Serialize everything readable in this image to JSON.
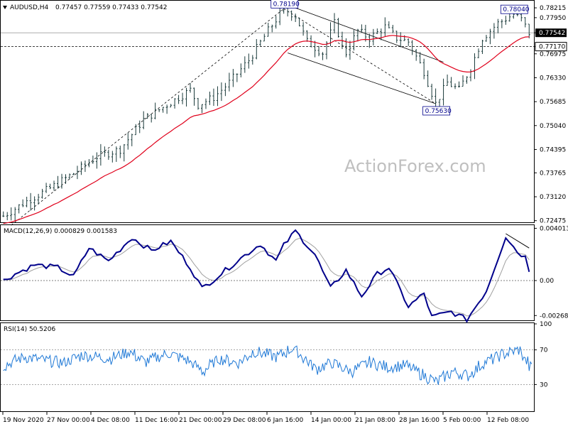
{
  "chart_data": [
    {
      "type": "candlestick",
      "title": "AUDUSD,H4",
      "ohlc_header": "0.77457 0.77559 0.77433 0.77542",
      "watermark": "ActionForex.com",
      "ylim": [
        0.7245,
        0.7835
      ],
      "y_ticks": [
        "0.78215",
        "0.77950",
        "0.77542",
        "0.77170",
        "0.76975",
        "0.76330",
        "0.75685",
        "0.75040",
        "0.74395",
        "0.73765",
        "0.73120",
        "0.72475"
      ],
      "current_price": "0.77542",
      "h_line_level": "0.77170",
      "annotations": [
        {
          "text": "0.78190",
          "value": 0.7819,
          "bar": 72
        },
        {
          "text": "0.78040",
          "value": 0.7804,
          "bar": 131
        },
        {
          "text": "0.75630",
          "value": 0.7563,
          "bar": 111
        }
      ],
      "moving_average": {
        "color": "#e0001b"
      },
      "price_path": [
        [
          0,
          0.726
        ],
        [
          6,
          0.73
        ],
        [
          12,
          0.7335
        ],
        [
          18,
          0.7375
        ],
        [
          24,
          0.742
        ],
        [
          30,
          0.744
        ],
        [
          36,
          0.752
        ],
        [
          42,
          0.756
        ],
        [
          48,
          0.76
        ],
        [
          50,
          0.756
        ],
        [
          54,
          0.758
        ],
        [
          58,
          0.762
        ],
        [
          63,
          0.768
        ],
        [
          68,
          0.776
        ],
        [
          72,
          0.7819
        ],
        [
          75,
          0.78
        ],
        [
          78,
          0.773
        ],
        [
          82,
          0.77
        ],
        [
          85,
          0.778
        ],
        [
          88,
          0.77
        ],
        [
          91,
          0.776
        ],
        [
          94,
          0.774
        ],
        [
          98,
          0.777
        ],
        [
          101,
          0.774
        ],
        [
          104,
          0.773
        ],
        [
          108,
          0.765
        ],
        [
          111,
          0.7563
        ],
        [
          114,
          0.762
        ],
        [
          117,
          0.76
        ],
        [
          120,
          0.766
        ],
        [
          123,
          0.774
        ],
        [
          127,
          0.778
        ],
        [
          131,
          0.7804
        ],
        [
          133,
          0.779
        ],
        [
          135,
          0.7754
        ]
      ]
    },
    {
      "type": "line",
      "title": "MACD(12,26,9) 0.000829 0.001583",
      "ylim": [
        -0.003,
        0.0042
      ],
      "y_ticks": [
        "0.004013",
        "0.00",
        "-0.002687"
      ],
      "series_colors": {
        "macd": "#00008b",
        "signal": "#a0a0a0"
      },
      "macd_path": [
        [
          0,
          0.0
        ],
        [
          3,
          0.0005
        ],
        [
          8,
          0.0012
        ],
        [
          14,
          0.001
        ],
        [
          18,
          0.0003
        ],
        [
          22,
          0.0025
        ],
        [
          27,
          0.0015
        ],
        [
          33,
          0.0033
        ],
        [
          38,
          0.0023
        ],
        [
          43,
          0.003
        ],
        [
          48,
          0.001
        ],
        [
          51,
          -0.0006
        ],
        [
          55,
          0.0003
        ],
        [
          60,
          0.0015
        ],
        [
          66,
          0.0028
        ],
        [
          70,
          0.0015
        ],
        [
          72,
          0.0027
        ],
        [
          75,
          0.0038
        ],
        [
          80,
          0.002
        ],
        [
          84,
          -0.0006
        ],
        [
          88,
          0.0008
        ],
        [
          92,
          -0.0012
        ],
        [
          96,
          0.0005
        ],
        [
          99,
          0.001
        ],
        [
          104,
          -0.002
        ],
        [
          108,
          -0.001
        ],
        [
          110,
          -0.0028
        ],
        [
          115,
          -0.0024
        ],
        [
          119,
          -0.003
        ],
        [
          124,
          -0.0008
        ],
        [
          129,
          0.0034
        ],
        [
          132,
          0.0022
        ],
        [
          134,
          0.0018
        ],
        [
          135,
          0.0008
        ]
      ],
      "trendline": [
        [
          129,
          0.0036
        ],
        [
          135,
          0.0025
        ]
      ]
    },
    {
      "type": "line",
      "title": "RSI(14) 50.5206",
      "ylim": [
        0,
        100
      ],
      "y_ticks": [
        "100",
        "70",
        "30",
        "0"
      ],
      "levels": [
        70,
        30
      ],
      "series_color": "#1e78d6",
      "rsi_path": [
        [
          0,
          52
        ],
        [
          5,
          62
        ],
        [
          10,
          58
        ],
        [
          15,
          55
        ],
        [
          20,
          64
        ],
        [
          27,
          60
        ],
        [
          32,
          68
        ],
        [
          36,
          56
        ],
        [
          42,
          66
        ],
        [
          47,
          58
        ],
        [
          51,
          45
        ],
        [
          55,
          60
        ],
        [
          60,
          55
        ],
        [
          64,
          68
        ],
        [
          70,
          62
        ],
        [
          74,
          72
        ],
        [
          77,
          60
        ],
        [
          80,
          48
        ],
        [
          84,
          55
        ],
        [
          89,
          45
        ],
        [
          94,
          56
        ],
        [
          98,
          50
        ],
        [
          103,
          52
        ],
        [
          107,
          42
        ],
        [
          111,
          33
        ],
        [
          115,
          45
        ],
        [
          119,
          40
        ],
        [
          123,
          55
        ],
        [
          128,
          65
        ],
        [
          132,
          70
        ],
        [
          135,
          50
        ]
      ]
    }
  ],
  "x_axis": {
    "labels": [
      "19 Nov 2020",
      "27 Nov 00:00",
      "4 Dec 08:00",
      "11 Dec 16:00",
      "21 Dec 00:00",
      "29 Dec 08:00",
      "6 Jan 16:00",
      "14 Jan 00:00",
      "21 Jan 08:00",
      "28 Jan 16:00",
      "5 Feb 00:00",
      "12 Feb 08:00"
    ]
  }
}
